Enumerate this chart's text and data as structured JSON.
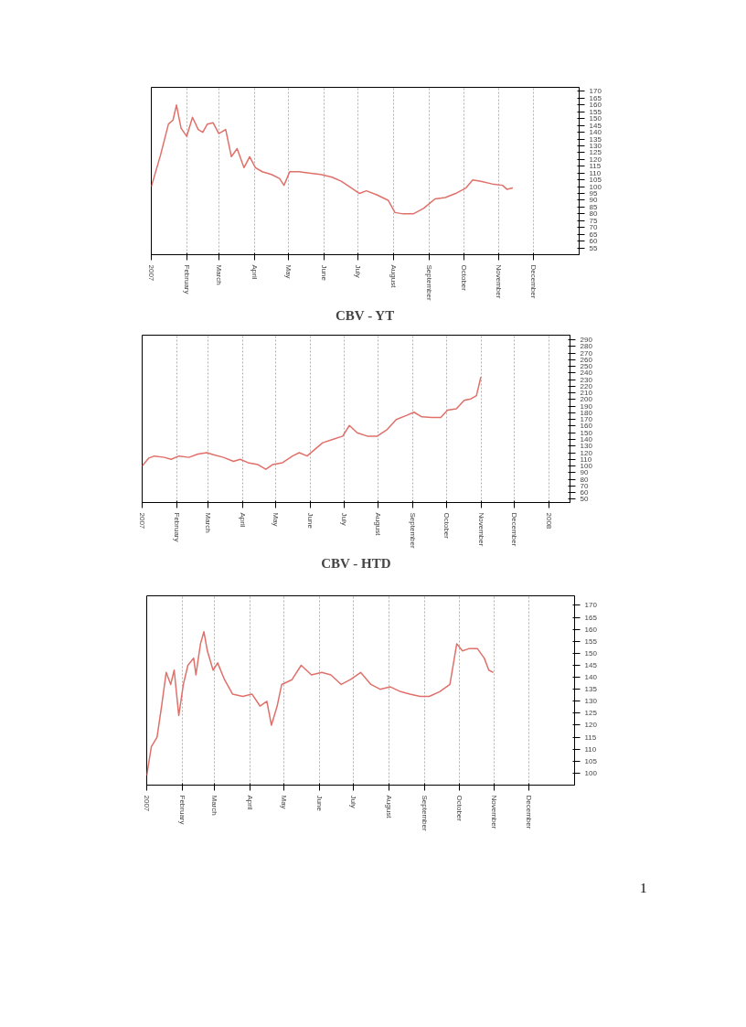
{
  "chart_data": [
    {
      "type": "line",
      "title": "CBV - YT",
      "grid": "x",
      "line_style": "solid",
      "x": [
        "2007-01-01",
        "2007-01-09",
        "2007-01-16",
        "2007-01-20",
        "2007-01-23",
        "2007-01-27",
        "2007-02-01",
        "2007-02-06",
        "2007-02-11",
        "2007-02-15",
        "2007-02-19",
        "2007-02-24",
        "2007-03-01",
        "2007-03-07",
        "2007-03-12",
        "2007-03-17",
        "2007-03-23",
        "2007-03-28",
        "2007-04-02",
        "2007-04-08",
        "2007-04-16",
        "2007-04-23",
        "2007-04-27",
        "2007-05-02",
        "2007-05-10",
        "2007-05-19",
        "2007-05-29",
        "2007-06-08",
        "2007-06-16",
        "2007-06-25",
        "2007-07-02",
        "2007-07-08",
        "2007-07-17",
        "2007-07-27",
        "2007-08-02",
        "2007-08-09",
        "2007-08-18",
        "2007-08-27",
        "2007-09-06",
        "2007-09-15",
        "2007-09-24",
        "2007-10-03",
        "2007-10-09",
        "2007-10-16",
        "2007-10-26",
        "2007-11-04",
        "2007-11-08",
        "2007-11-13"
      ],
      "series": [
        {
          "color": "#e0706a",
          "values": [
            100,
            123,
            146,
            149,
            160,
            143,
            137,
            151,
            142,
            140,
            146,
            147,
            139,
            142,
            122,
            128,
            114,
            122,
            114,
            111,
            109,
            106,
            101,
            111,
            111,
            110,
            109,
            107,
            104,
            99,
            95,
            97,
            94,
            90,
            81,
            80,
            80,
            84,
            91,
            92,
            95,
            99,
            105,
            104,
            102,
            101,
            98,
            99
          ]
        }
      ],
      "xlim": [
        "2007-01-01",
        "2008-01-10"
      ],
      "xticks": [
        {
          "value": "2007-01-01",
          "label": "2007"
        },
        {
          "value": "2007-02-01",
          "label": "February"
        },
        {
          "value": "2007-03-01",
          "label": "March"
        },
        {
          "value": "2007-04-01",
          "label": "April"
        },
        {
          "value": "2007-05-01",
          "label": "May"
        },
        {
          "value": "2007-06-01",
          "label": "June"
        },
        {
          "value": "2007-07-01",
          "label": "July"
        },
        {
          "value": "2007-08-01",
          "label": "August"
        },
        {
          "value": "2007-09-01",
          "label": "September"
        },
        {
          "value": "2007-10-01",
          "label": "October"
        },
        {
          "value": "2007-11-01",
          "label": "November"
        },
        {
          "value": "2007-12-01",
          "label": "December"
        }
      ],
      "ylim": [
        50,
        173
      ],
      "yticks": [
        55,
        60,
        65,
        70,
        75,
        80,
        85,
        90,
        95,
        100,
        105,
        110,
        115,
        120,
        125,
        130,
        135,
        140,
        145,
        150,
        155,
        160,
        165,
        170
      ]
    },
    {
      "type": "line",
      "title": "CBV - HTD",
      "grid": "x",
      "line_style": "solid",
      "x": [
        "2007-01-01",
        "2007-01-07",
        "2007-01-12",
        "2007-01-21",
        "2007-01-27",
        "2007-02-03",
        "2007-02-12",
        "2007-02-20",
        "2007-02-28",
        "2007-03-06",
        "2007-03-15",
        "2007-03-24",
        "2007-03-30",
        "2007-04-06",
        "2007-04-15",
        "2007-04-22",
        "2007-04-28",
        "2007-05-07",
        "2007-05-16",
        "2007-05-22",
        "2007-05-29",
        "2007-06-05",
        "2007-06-12",
        "2007-06-21",
        "2007-06-30",
        "2007-07-06",
        "2007-07-13",
        "2007-07-22",
        "2007-07-31",
        "2007-08-09",
        "2007-08-17",
        "2007-08-26",
        "2007-09-02",
        "2007-09-09",
        "2007-09-18",
        "2007-09-26",
        "2007-10-02",
        "2007-10-10",
        "2007-10-17",
        "2007-10-23",
        "2007-10-28",
        "2007-11-01"
      ],
      "series": [
        {
          "color": "#e0706a",
          "values": [
            100,
            112,
            115,
            113,
            110,
            115,
            113,
            118,
            120,
            117,
            113,
            107,
            110,
            105,
            102,
            95,
            102,
            105,
            115,
            120,
            115,
            125,
            135,
            140,
            145,
            161,
            150,
            145,
            145,
            155,
            170,
            176,
            181,
            174,
            173,
            173,
            184,
            186,
            199,
            201,
            206,
            234
          ]
        }
      ],
      "xlim": [
        "2007-01-01",
        "2008-01-20"
      ],
      "xticks": [
        {
          "value": "2007-01-01",
          "label": "2007"
        },
        {
          "value": "2007-02-01",
          "label": "February"
        },
        {
          "value": "2007-03-01",
          "label": "March"
        },
        {
          "value": "2007-04-01",
          "label": "April"
        },
        {
          "value": "2007-05-01",
          "label": "May"
        },
        {
          "value": "2007-06-01",
          "label": "June"
        },
        {
          "value": "2007-07-01",
          "label": "July"
        },
        {
          "value": "2007-08-01",
          "label": "August"
        },
        {
          "value": "2007-09-01",
          "label": "September"
        },
        {
          "value": "2007-10-01",
          "label": "October"
        },
        {
          "value": "2007-11-01",
          "label": "November"
        },
        {
          "value": "2007-12-01",
          "label": "December"
        },
        {
          "value": "2008-01-01",
          "label": "2008"
        }
      ],
      "ylim": [
        45,
        297
      ],
      "yticks": [
        50,
        60,
        70,
        80,
        90,
        100,
        110,
        120,
        130,
        140,
        150,
        160,
        170,
        180,
        190,
        200,
        210,
        220,
        230,
        240,
        250,
        260,
        270,
        280,
        290
      ]
    },
    {
      "type": "line",
      "grid": "x",
      "line_style": "solid",
      "annotations": [
        "1"
      ],
      "x": [
        "2007-01-01",
        "2007-01-05",
        "2007-01-10",
        "2007-01-14",
        "2007-01-18",
        "2007-01-22",
        "2007-01-25",
        "2007-01-29",
        "2007-02-02",
        "2007-02-06",
        "2007-02-11",
        "2007-02-13",
        "2007-02-17",
        "2007-02-20",
        "2007-02-23",
        "2007-02-28",
        "2007-03-04",
        "2007-03-10",
        "2007-03-17",
        "2007-03-26",
        "2007-04-03",
        "2007-04-10",
        "2007-04-16",
        "2007-04-20",
        "2007-04-25",
        "2007-04-29",
        "2007-05-08",
        "2007-05-16",
        "2007-05-25",
        "2007-06-03",
        "2007-06-11",
        "2007-06-20",
        "2007-06-28",
        "2007-07-07",
        "2007-07-16",
        "2007-07-24",
        "2007-08-02",
        "2007-08-11",
        "2007-08-19",
        "2007-08-28",
        "2007-09-05",
        "2007-09-14",
        "2007-09-23",
        "2007-09-29",
        "2007-10-04",
        "2007-10-10",
        "2007-10-17",
        "2007-10-23",
        "2007-10-27",
        "2007-10-31"
      ],
      "series": [
        {
          "color": "#e0706a",
          "values": [
            99,
            111,
            115,
            128,
            142,
            137,
            143,
            124,
            137,
            145,
            148,
            141,
            154,
            159,
            151,
            143,
            146,
            139,
            133,
            132,
            133,
            128,
            130,
            120,
            128,
            137,
            139,
            145,
            141,
            142,
            141,
            137,
            139,
            142,
            137,
            135,
            136,
            134,
            133,
            132,
            132,
            134,
            137,
            154,
            151,
            152,
            152,
            148,
            143,
            142
          ]
        }
      ],
      "xlim": [
        "2007-01-01",
        "2008-01-10"
      ],
      "xticks": [
        {
          "value": "2007-01-01",
          "label": "2007"
        },
        {
          "value": "2007-02-01",
          "label": "February"
        },
        {
          "value": "2007-03-01",
          "label": "March"
        },
        {
          "value": "2007-04-01",
          "label": "April"
        },
        {
          "value": "2007-05-01",
          "label": "May"
        },
        {
          "value": "2007-06-01",
          "label": "June"
        },
        {
          "value": "2007-07-01",
          "label": "July"
        },
        {
          "value": "2007-08-01",
          "label": "August"
        },
        {
          "value": "2007-09-01",
          "label": "September"
        },
        {
          "value": "2007-10-01",
          "label": "October"
        },
        {
          "value": "2007-11-01",
          "label": "November"
        },
        {
          "value": "2007-12-01",
          "label": "December"
        }
      ],
      "ylim": [
        95,
        174
      ],
      "yticks": [
        100,
        105,
        110,
        115,
        120,
        125,
        130,
        135,
        140,
        145,
        150,
        155,
        160,
        165,
        170
      ]
    }
  ]
}
